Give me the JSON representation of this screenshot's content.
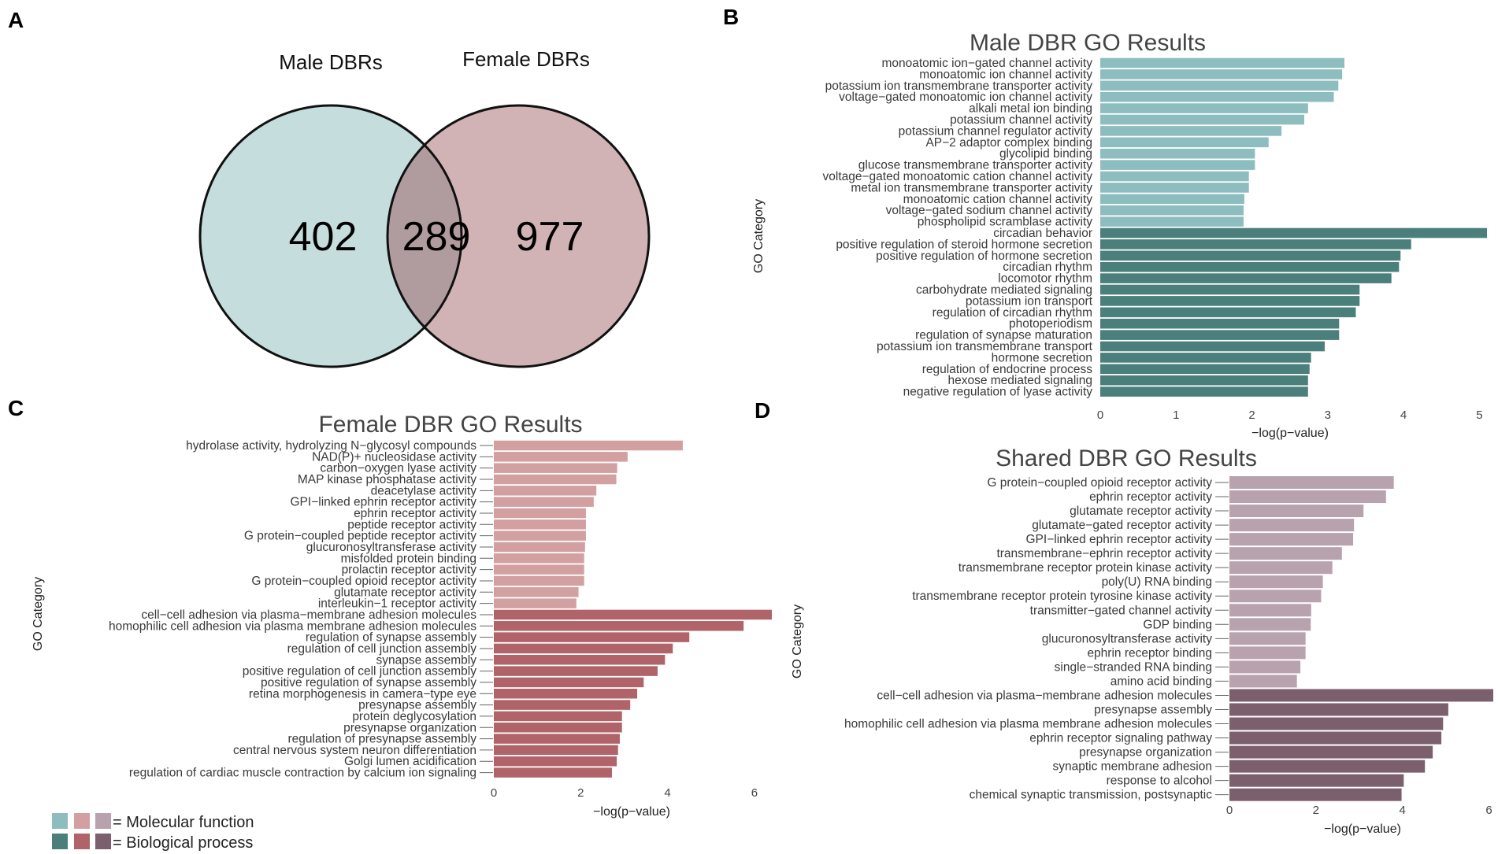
{
  "venn": {
    "letter": "A",
    "left_label": "Male DBRs",
    "right_label": "Female DBRs",
    "left_only": "402",
    "shared": "289",
    "right_only": "977",
    "colors": {
      "left": "#c5dddd",
      "right": "#d2b3b5",
      "overlap": "#b09c9f"
    }
  },
  "legend": {
    "molecular_label": "= Molecular function",
    "biological_label": "= Biological process",
    "mf_colors": [
      "#8ebdc0",
      "#d3a0a2",
      "#b8a2ae"
    ],
    "bp_colors": [
      "#4a7f7b",
      "#b06469",
      "#7b5f6d"
    ]
  },
  "chart_data": [
    {
      "id": "male",
      "letter": "B",
      "type": "bar",
      "orientation": "horizontal",
      "title": "Male DBR GO Results",
      "xlabel": "−log(p−value)",
      "ylabel": "GO Category",
      "xlim": [
        0,
        5.1
      ],
      "xticks": [
        0,
        1,
        2,
        3,
        4,
        5
      ],
      "colors": {
        "molecular_function": "#8ebdc0",
        "biological_process": "#4a7f7b"
      },
      "series": [
        {
          "name": "Molecular function",
          "categories": [
            "monoatomic ion−gated channel activity",
            "monoatomic ion channel activity",
            "potassium ion transmembrane transporter activity",
            "voltage−gated monoatomic ion channel activity",
            "alkali metal ion binding",
            "potassium channel activity",
            "potassium channel regulator activity",
            "AP−2 adaptor complex binding",
            "glycolipid binding",
            "glucose transmembrane transporter activity",
            "voltage−gated monoatomic cation channel activity",
            "metal ion transmembrane transporter activity",
            "monoatomic cation channel activity",
            "voltage−gated sodium channel activity",
            "phospholipid scramblase activity"
          ],
          "values": [
            3.22,
            3.19,
            3.14,
            3.08,
            2.74,
            2.69,
            2.39,
            2.22,
            2.04,
            2.04,
            1.96,
            1.96,
            1.9,
            1.89,
            1.89
          ]
        },
        {
          "name": "Biological process",
          "categories": [
            "circadian behavior",
            "positive regulation of steroid hormone secretion",
            "positive regulation of hormone secretion",
            "circadian rhythm",
            "locomotor rhythm",
            "carbohydrate mediated signaling",
            "potassium ion transport",
            "regulation of circadian rhythm",
            "photoperiodism",
            "regulation of synapse maturation",
            "potassium ion transmembrane transport",
            "hormone secretion",
            "regulation of endocrine process",
            "hexose mediated signaling",
            "negative regulation of lyase activity"
          ],
          "values": [
            5.1,
            4.1,
            3.96,
            3.94,
            3.84,
            3.42,
            3.42,
            3.37,
            3.15,
            3.15,
            2.96,
            2.78,
            2.76,
            2.74,
            2.74
          ]
        }
      ]
    },
    {
      "id": "female",
      "letter": "C",
      "type": "bar",
      "orientation": "horizontal",
      "title": "Female DBR GO Results",
      "xlabel": "−log(p−value)",
      "ylabel": "GO Category",
      "xlim": [
        0,
        6.4
      ],
      "xticks": [
        0,
        2,
        4,
        6
      ],
      "colors": {
        "molecular_function": "#d3a0a2",
        "biological_process": "#b06469"
      },
      "series": [
        {
          "name": "Molecular function",
          "categories": [
            "hydrolase activity, hydrolyzing N−glycosyl compounds",
            "NAD(P)+ nucleosidase activity",
            "carbon−oxygen lyase activity",
            "MAP kinase phosphatase activity",
            "deacetylase activity",
            "GPI−linked ephrin receptor activity",
            "ephrin receptor activity",
            "peptide receptor activity",
            "G protein−coupled peptide receptor activity",
            "glucuronosyltransferase activity",
            "misfolded protein binding",
            "prolactin receptor activity",
            "G protein−coupled opioid receptor activity",
            "glutamate receptor activity",
            "interleukin−1 receptor activity"
          ],
          "values": [
            4.35,
            3.08,
            2.84,
            2.82,
            2.36,
            2.3,
            2.12,
            2.12,
            2.12,
            2.1,
            2.08,
            2.08,
            2.08,
            1.95,
            1.9
          ]
        },
        {
          "name": "Biological process",
          "categories": [
            "cell−cell adhesion via plasma−membrane adhesion molecules",
            "homophilic cell adhesion via plasma membrane adhesion molecules",
            "regulation of synapse assembly",
            "regulation of cell junction assembly",
            "synapse assembly",
            "positive regulation of cell junction assembly",
            "positive regulation of synapse assembly",
            "retina morphogenesis in camera−type eye",
            "presynapse assembly",
            "protein deglycosylation",
            "presynapse organization",
            "regulation of presynapse assembly",
            "central nervous system neuron differentiation",
            "Golgi lumen acidification",
            "regulation of cardiac muscle contraction by calcium ion signaling"
          ],
          "values": [
            6.4,
            5.75,
            4.5,
            4.12,
            3.94,
            3.77,
            3.45,
            3.3,
            3.14,
            2.95,
            2.95,
            2.9,
            2.86,
            2.83,
            2.72
          ]
        }
      ]
    },
    {
      "id": "shared",
      "letter": "D",
      "type": "bar",
      "orientation": "horizontal",
      "title": "Shared DBR GO Results",
      "xlabel": "−log(p−value)",
      "ylabel": "GO Category",
      "xlim": [
        0,
        6.1
      ],
      "xticks": [
        0,
        2,
        4,
        6
      ],
      "colors": {
        "molecular_function": "#b8a2ae",
        "biological_process": "#7b5f6d"
      },
      "series": [
        {
          "name": "Molecular function",
          "categories": [
            "G protein−coupled opioid receptor activity",
            "ephrin receptor activity",
            "glutamate receptor activity",
            "glutamate−gated receptor activity",
            "GPI−linked ephrin receptor activity",
            "transmembrane−ephrin receptor activity",
            "transmembrane receptor protein kinase activity",
            "poly(U) RNA binding",
            "transmembrane receptor protein tyrosine kinase activity",
            "transmitter−gated channel activity",
            "GDP binding",
            "glucuronosyltransferase activity",
            "ephrin receptor binding",
            "single−stranded RNA binding",
            "amino acid binding"
          ],
          "values": [
            3.8,
            3.62,
            3.1,
            2.88,
            2.86,
            2.6,
            2.38,
            2.16,
            2.12,
            1.89,
            1.88,
            1.76,
            1.76,
            1.64,
            1.56
          ]
        },
        {
          "name": "Biological process",
          "categories": [
            "cell−cell adhesion via plasma−membrane adhesion molecules",
            "presynapse assembly",
            "homophilic cell adhesion via plasma membrane adhesion molecules",
            "ephrin receptor signaling pathway",
            "presynapse organization",
            "synaptic membrane adhesion",
            "response to alcohol",
            "chemical synaptic transmission, postsynaptic"
          ],
          "values": [
            6.1,
            5.06,
            4.94,
            4.9,
            4.7,
            4.52,
            4.03,
            3.98
          ]
        }
      ]
    }
  ]
}
